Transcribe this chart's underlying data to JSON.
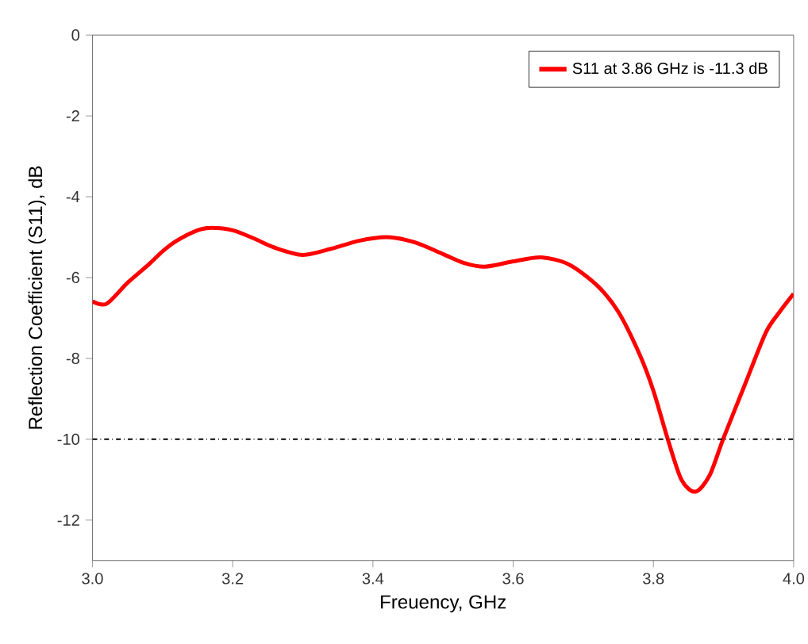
{
  "chart_data": {
    "type": "line",
    "xlabel": "Freuency, GHz",
    "ylabel": "Reflection Coefficient (S11), dB",
    "series": [
      {
        "name": "S11 at 3.86 GHz is -11.3 dB",
        "color": "#ff0000",
        "x": [
          3.0,
          3.02,
          3.05,
          3.08,
          3.1,
          3.12,
          3.15,
          3.17,
          3.2,
          3.23,
          3.26,
          3.3,
          3.34,
          3.38,
          3.42,
          3.46,
          3.5,
          3.53,
          3.56,
          3.6,
          3.64,
          3.68,
          3.72,
          3.75,
          3.78,
          3.8,
          3.82,
          3.84,
          3.86,
          3.88,
          3.9,
          3.93,
          3.96,
          3.98,
          4.0
        ],
        "values": [
          -6.59,
          -6.65,
          -6.13,
          -5.68,
          -5.35,
          -5.09,
          -4.83,
          -4.77,
          -4.83,
          -5.03,
          -5.26,
          -5.44,
          -5.29,
          -5.09,
          -5.0,
          -5.13,
          -5.42,
          -5.64,
          -5.73,
          -5.6,
          -5.5,
          -5.68,
          -6.2,
          -6.85,
          -7.89,
          -8.8,
          -9.97,
          -11.0,
          -11.3,
          -10.9,
          -9.97,
          -8.67,
          -7.37,
          -6.85,
          -6.4
        ]
      }
    ],
    "xlim": [
      3.0,
      4.0
    ],
    "ylim": [
      -13,
      0
    ],
    "xticks": [
      {
        "value": 3.0,
        "label": "3.0"
      },
      {
        "value": 3.2,
        "label": "3.2"
      },
      {
        "value": 3.4,
        "label": "3.4"
      },
      {
        "value": 3.6,
        "label": "3.6"
      },
      {
        "value": 3.8,
        "label": "3.8"
      },
      {
        "value": 4.0,
        "label": "4.0"
      }
    ],
    "yticks": [
      0,
      -2,
      -4,
      -6,
      -8,
      -10,
      -12
    ],
    "ref_lines": [
      {
        "axis": "y",
        "value": -10,
        "color": "#000000",
        "line_style": "dashdot"
      }
    ],
    "legend": "top right",
    "grid": false,
    "marker": "none",
    "line_style": "solid"
  }
}
